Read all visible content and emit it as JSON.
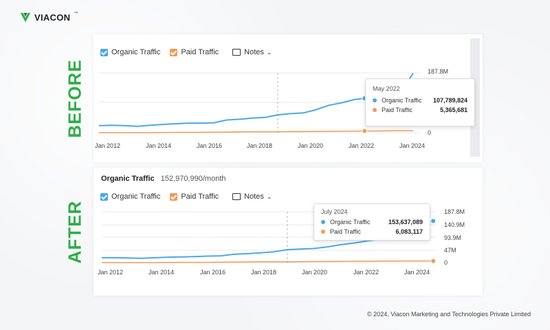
{
  "brand": {
    "name": "VIACON",
    "tm": "™"
  },
  "labels": {
    "before": "BEFORE",
    "after": "AFTER"
  },
  "colors": {
    "organic": "#4aa8e8",
    "paid": "#f39a55",
    "accent": "#2fae4a"
  },
  "before": {
    "legend": {
      "organic": "Organic Traffic",
      "paid": "Paid Traffic",
      "notes": "Notes"
    },
    "y_ticks": [
      "187.8M",
      "0"
    ],
    "x_ticks": [
      "Jan 2012",
      "Jan 2014",
      "Jan 2016",
      "Jan 2018",
      "Jan 2020",
      "Jan 2022",
      "Jan 2024"
    ],
    "tooltip": {
      "date": "May 2022",
      "rows": [
        {
          "name": "Organic Traffic",
          "value": "107,789,824"
        },
        {
          "name": "Paid Traffic",
          "value": "5,365,681"
        }
      ]
    }
  },
  "after": {
    "title": "Organic Traffic",
    "title_value": "152,970,990/month",
    "legend": {
      "organic": "Organic Traffic",
      "paid": "Paid Traffic",
      "notes": "Notes"
    },
    "y_ticks": [
      "187.8M",
      "140.9M",
      "93.9M",
      "47M",
      "0"
    ],
    "x_ticks": [
      "Jan 2012",
      "Jan 2014",
      "Jan 2016",
      "Jan 2018",
      "Jan 2020",
      "Jan 2022",
      "Jan 2024"
    ],
    "tooltip": {
      "date": "July 2024",
      "rows": [
        {
          "name": "Organic Traffic",
          "value": "153,637,089"
        },
        {
          "name": "Paid Traffic",
          "value": "6,083,117"
        }
      ]
    }
  },
  "chart_data": [
    {
      "type": "line",
      "x": [
        2012.0,
        2012.5,
        2013.0,
        2013.5,
        2014.0,
        2014.5,
        2015.0,
        2015.5,
        2016.0,
        2016.5,
        2017.0,
        2017.5,
        2018.0,
        2018.5,
        2019.0,
        2019.5,
        2020.0,
        2020.5,
        2021.0,
        2021.5,
        2022.0,
        2022.4,
        2023.0,
        2023.5,
        2024.0,
        2024.3
      ],
      "series": [
        {
          "name": "Organic Traffic",
          "values": [
            22,
            23,
            22,
            20,
            23,
            26,
            28,
            30,
            30,
            31,
            40,
            42,
            46,
            48,
            56,
            60,
            62,
            72,
            86,
            94,
            104,
            108,
            115,
            125,
            150,
            187
          ]
        },
        {
          "name": "Paid Traffic",
          "values": [
            0,
            0,
            0,
            0,
            0,
            0.5,
            1,
            1,
            1,
            1.5,
            2,
            2.5,
            3,
            3,
            3,
            3.5,
            3.5,
            4,
            4,
            4.5,
            5,
            5.4,
            5.5,
            5.8,
            6,
            6
          ]
        }
      ],
      "xlabels": [
        "Jan 2012",
        "Jan 2014",
        "Jan 2016",
        "Jan 2018",
        "Jan 2020",
        "Jan 2022",
        "Jan 2024"
      ],
      "ylim": [
        0,
        187.8
      ],
      "y_unit": "M",
      "highlight_x": 2022.4,
      "dashed_x": 2019.0
    },
    {
      "type": "line",
      "x": [
        2012.0,
        2012.5,
        2013.0,
        2013.5,
        2014.0,
        2014.5,
        2015.0,
        2015.5,
        2016.0,
        2016.5,
        2017.0,
        2017.5,
        2018.0,
        2018.5,
        2019.0,
        2019.5,
        2020.0,
        2020.5,
        2021.0,
        2021.5,
        2022.0,
        2022.5,
        2023.0,
        2023.5,
        2024.0,
        2024.5
      ],
      "series": [
        {
          "name": "Organic Traffic",
          "values": [
            18,
            18,
            17,
            16,
            18,
            20,
            21,
            22,
            24,
            25,
            31,
            33,
            36,
            40,
            48,
            50,
            52,
            58,
            66,
            72,
            80,
            86,
            92,
            100,
            140,
            154
          ]
        },
        {
          "name": "Paid Traffic",
          "values": [
            0,
            0,
            0,
            0,
            0,
            0.5,
            1,
            1,
            1,
            1.5,
            2,
            2.5,
            3,
            3,
            3,
            3.5,
            4,
            4,
            4.5,
            5,
            5.2,
            5.5,
            5.8,
            6,
            6,
            6.1
          ]
        }
      ],
      "xlabels": [
        "Jan 2012",
        "Jan 2014",
        "Jan 2016",
        "Jan 2018",
        "Jan 2020",
        "Jan 2022",
        "Jan 2024"
      ],
      "ylim": [
        0,
        187.8
      ],
      "y_unit": "M",
      "highlight_x": 2024.5,
      "dashed_x": 2019.0
    }
  ],
  "footer": "© 2024, Viacon Marketing and Technologies Private Limited"
}
